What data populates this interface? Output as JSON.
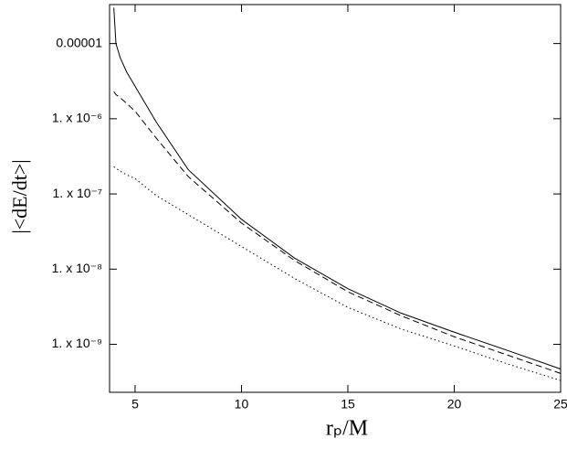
{
  "chart_data": {
    "type": "line",
    "xlabel": "rₚ/M",
    "ylabel": "|<dE/dt>|",
    "x": [
      4.0,
      4.1,
      4.3,
      4.6,
      5,
      6,
      7.5,
      10,
      12.5,
      15,
      17.5,
      20,
      22.5,
      25
    ],
    "series": [
      {
        "color": "#000000",
        "dash": "solid",
        "values": [
          3e-05,
          1e-05,
          6.5e-06,
          4.2e-06,
          2.7e-06,
          9e-07,
          2.1e-07,
          4.6e-08,
          1.4e-08,
          5.5e-09,
          2.6e-09,
          1.45e-09,
          8.3e-10,
          4.7e-10
        ]
      },
      {
        "color": "#000000",
        "dash": "dashed",
        "values": [
          2.3e-06,
          2.1e-06,
          1.9e-06,
          1.6e-06,
          1.26e-06,
          5.5e-07,
          1.7e-07,
          4.1e-08,
          1.3e-08,
          5e-09,
          2.4e-09,
          1.26e-09,
          7.2e-10,
          4.1e-10
        ]
      },
      {
        "color": "#000000",
        "dash": "dotted",
        "values": [
          2.3e-07,
          2.2e-07,
          2e-07,
          1.8e-07,
          1.6e-07,
          9.5e-08,
          5.3e-08,
          2e-08,
          7.5e-09,
          3.1e-09,
          1.6e-09,
          9.5e-10,
          5.5e-10,
          3.3e-10
        ]
      }
    ],
    "xlim": [
      3.8,
      25
    ],
    "xticks": [
      5,
      10,
      15,
      20,
      25
    ],
    "ylim": [
      2.3e-10,
      3.3e-05
    ],
    "ylog": true,
    "yticks": [
      1e-05,
      {
        "value": 1e-06,
        "label": "1. x 10⁻⁶"
      },
      {
        "value": 1e-07,
        "label": "1. x 10⁻⁷"
      },
      {
        "value": 1e-08,
        "label": "1. x 10⁻⁸"
      },
      {
        "value": 1e-09,
        "label": "1. x 10⁻⁹"
      }
    ],
    "grid": false
  }
}
